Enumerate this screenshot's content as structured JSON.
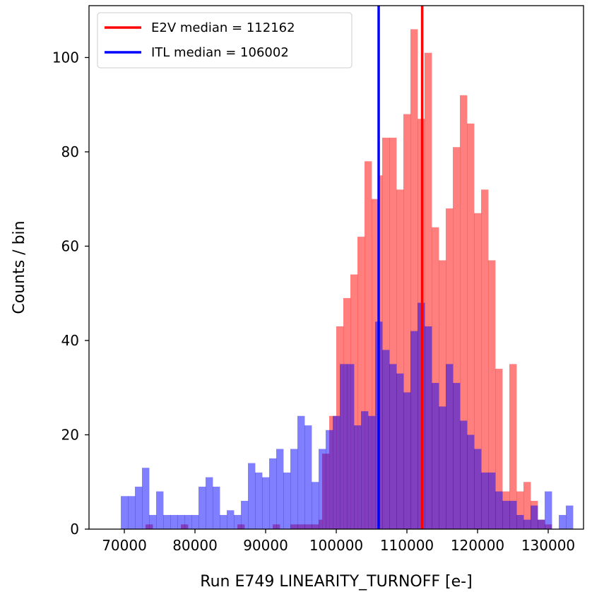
{
  "chart_data": {
    "type": "histogram",
    "xlabel": "Run E749 LINEARITY_TURNOFF [e-]",
    "ylabel": "Counts / bin",
    "xlim": [
      65000,
      135000
    ],
    "ylim": [
      0,
      111
    ],
    "xticks": [
      70000,
      80000,
      90000,
      100000,
      110000,
      120000,
      130000
    ],
    "yticks": [
      0,
      20,
      40,
      60,
      80,
      100
    ],
    "grid": false,
    "legend_position": "top-left",
    "series": [
      {
        "name": "E2V",
        "color": "#ff0000",
        "alpha": 0.5,
        "bins": [
          [
            73000,
            74000,
            1
          ],
          [
            78000,
            79000,
            1
          ],
          [
            86000,
            87000,
            1
          ],
          [
            91000,
            92000,
            1
          ],
          [
            93500,
            94500,
            1
          ],
          [
            94500,
            95500,
            1
          ],
          [
            95500,
            96500,
            1
          ],
          [
            96500,
            97500,
            1
          ],
          [
            97500,
            98000,
            2
          ],
          [
            98000,
            99000,
            16
          ],
          [
            99000,
            100000,
            24
          ],
          [
            100000,
            101000,
            43
          ],
          [
            101000,
            102000,
            49
          ],
          [
            102000,
            103000,
            54
          ],
          [
            103000,
            104000,
            62
          ],
          [
            104000,
            105000,
            78
          ],
          [
            105000,
            106000,
            70
          ],
          [
            106000,
            106500,
            75
          ],
          [
            106500,
            107500,
            83
          ],
          [
            107500,
            108500,
            83
          ],
          [
            108500,
            109500,
            72
          ],
          [
            109500,
            110500,
            88
          ],
          [
            110500,
            111500,
            106
          ],
          [
            111500,
            112500,
            87
          ],
          [
            112500,
            113500,
            101
          ],
          [
            113500,
            114500,
            64
          ],
          [
            114500,
            115500,
            57
          ],
          [
            115500,
            116500,
            68
          ],
          [
            116500,
            117500,
            81
          ],
          [
            117500,
            118500,
            92
          ],
          [
            118500,
            119500,
            86
          ],
          [
            119500,
            120500,
            67
          ],
          [
            120500,
            121500,
            72
          ],
          [
            121500,
            122500,
            57
          ],
          [
            122500,
            123500,
            34
          ],
          [
            123500,
            124500,
            8
          ],
          [
            124500,
            125500,
            35
          ],
          [
            125500,
            126500,
            8
          ],
          [
            126500,
            127500,
            10
          ],
          [
            127500,
            128500,
            6
          ],
          [
            128500,
            129500,
            2
          ],
          [
            129500,
            130500,
            1
          ]
        ]
      },
      {
        "name": "ITL",
        "color": "#0000ff",
        "alpha": 0.5,
        "bins": [
          [
            69500,
            70500,
            7
          ],
          [
            70500,
            71500,
            7
          ],
          [
            71500,
            72500,
            9
          ],
          [
            72500,
            73500,
            13
          ],
          [
            73500,
            74500,
            3
          ],
          [
            74500,
            75500,
            8
          ],
          [
            75500,
            76500,
            3
          ],
          [
            76500,
            77500,
            3
          ],
          [
            77500,
            78500,
            3
          ],
          [
            78500,
            79500,
            3
          ],
          [
            79500,
            80500,
            3
          ],
          [
            80500,
            81500,
            9
          ],
          [
            81500,
            82500,
            11
          ],
          [
            82500,
            83500,
            9
          ],
          [
            83500,
            84500,
            3
          ],
          [
            84500,
            85500,
            4
          ],
          [
            85500,
            86500,
            3
          ],
          [
            86500,
            87500,
            6
          ],
          [
            87500,
            88500,
            14
          ],
          [
            88500,
            89500,
            12
          ],
          [
            89500,
            90500,
            11
          ],
          [
            90500,
            91500,
            15
          ],
          [
            91500,
            92500,
            17
          ],
          [
            92500,
            93500,
            12
          ],
          [
            93500,
            94500,
            17
          ],
          [
            94500,
            95500,
            24
          ],
          [
            95500,
            96500,
            22
          ],
          [
            96500,
            97500,
            10
          ],
          [
            97500,
            98500,
            17
          ],
          [
            98500,
            99500,
            21
          ],
          [
            99500,
            100500,
            24
          ],
          [
            100500,
            101500,
            35
          ],
          [
            101500,
            102500,
            35
          ],
          [
            102500,
            103500,
            22
          ],
          [
            103500,
            104500,
            25
          ],
          [
            104500,
            105500,
            24
          ],
          [
            105500,
            106500,
            44
          ],
          [
            106500,
            107500,
            38
          ],
          [
            107500,
            108500,
            35
          ],
          [
            108500,
            109500,
            33
          ],
          [
            109500,
            110500,
            29
          ],
          [
            110500,
            111500,
            42
          ],
          [
            111500,
            112500,
            48
          ],
          [
            112500,
            113500,
            43
          ],
          [
            113500,
            114500,
            31
          ],
          [
            114500,
            115500,
            26
          ],
          [
            115500,
            116500,
            35
          ],
          [
            116500,
            117500,
            31
          ],
          [
            117500,
            118500,
            23
          ],
          [
            118500,
            119500,
            20
          ],
          [
            119500,
            120500,
            17
          ],
          [
            120500,
            121500,
            12
          ],
          [
            121500,
            122500,
            12
          ],
          [
            122500,
            123500,
            8
          ],
          [
            123500,
            124500,
            6
          ],
          [
            124500,
            125500,
            6
          ],
          [
            125500,
            126500,
            3
          ],
          [
            126500,
            127500,
            2
          ],
          [
            127500,
            128500,
            5
          ],
          [
            128500,
            129500,
            2
          ],
          [
            129500,
            130500,
            8
          ],
          [
            131500,
            132500,
            3
          ],
          [
            132500,
            133500,
            5
          ]
        ]
      }
    ],
    "vertical_lines": [
      {
        "label": "E2V median = 112162",
        "x": 112162,
        "color": "#ff0000"
      },
      {
        "label": "ITL median = 106002",
        "x": 106002,
        "color": "#0000ff"
      }
    ]
  }
}
